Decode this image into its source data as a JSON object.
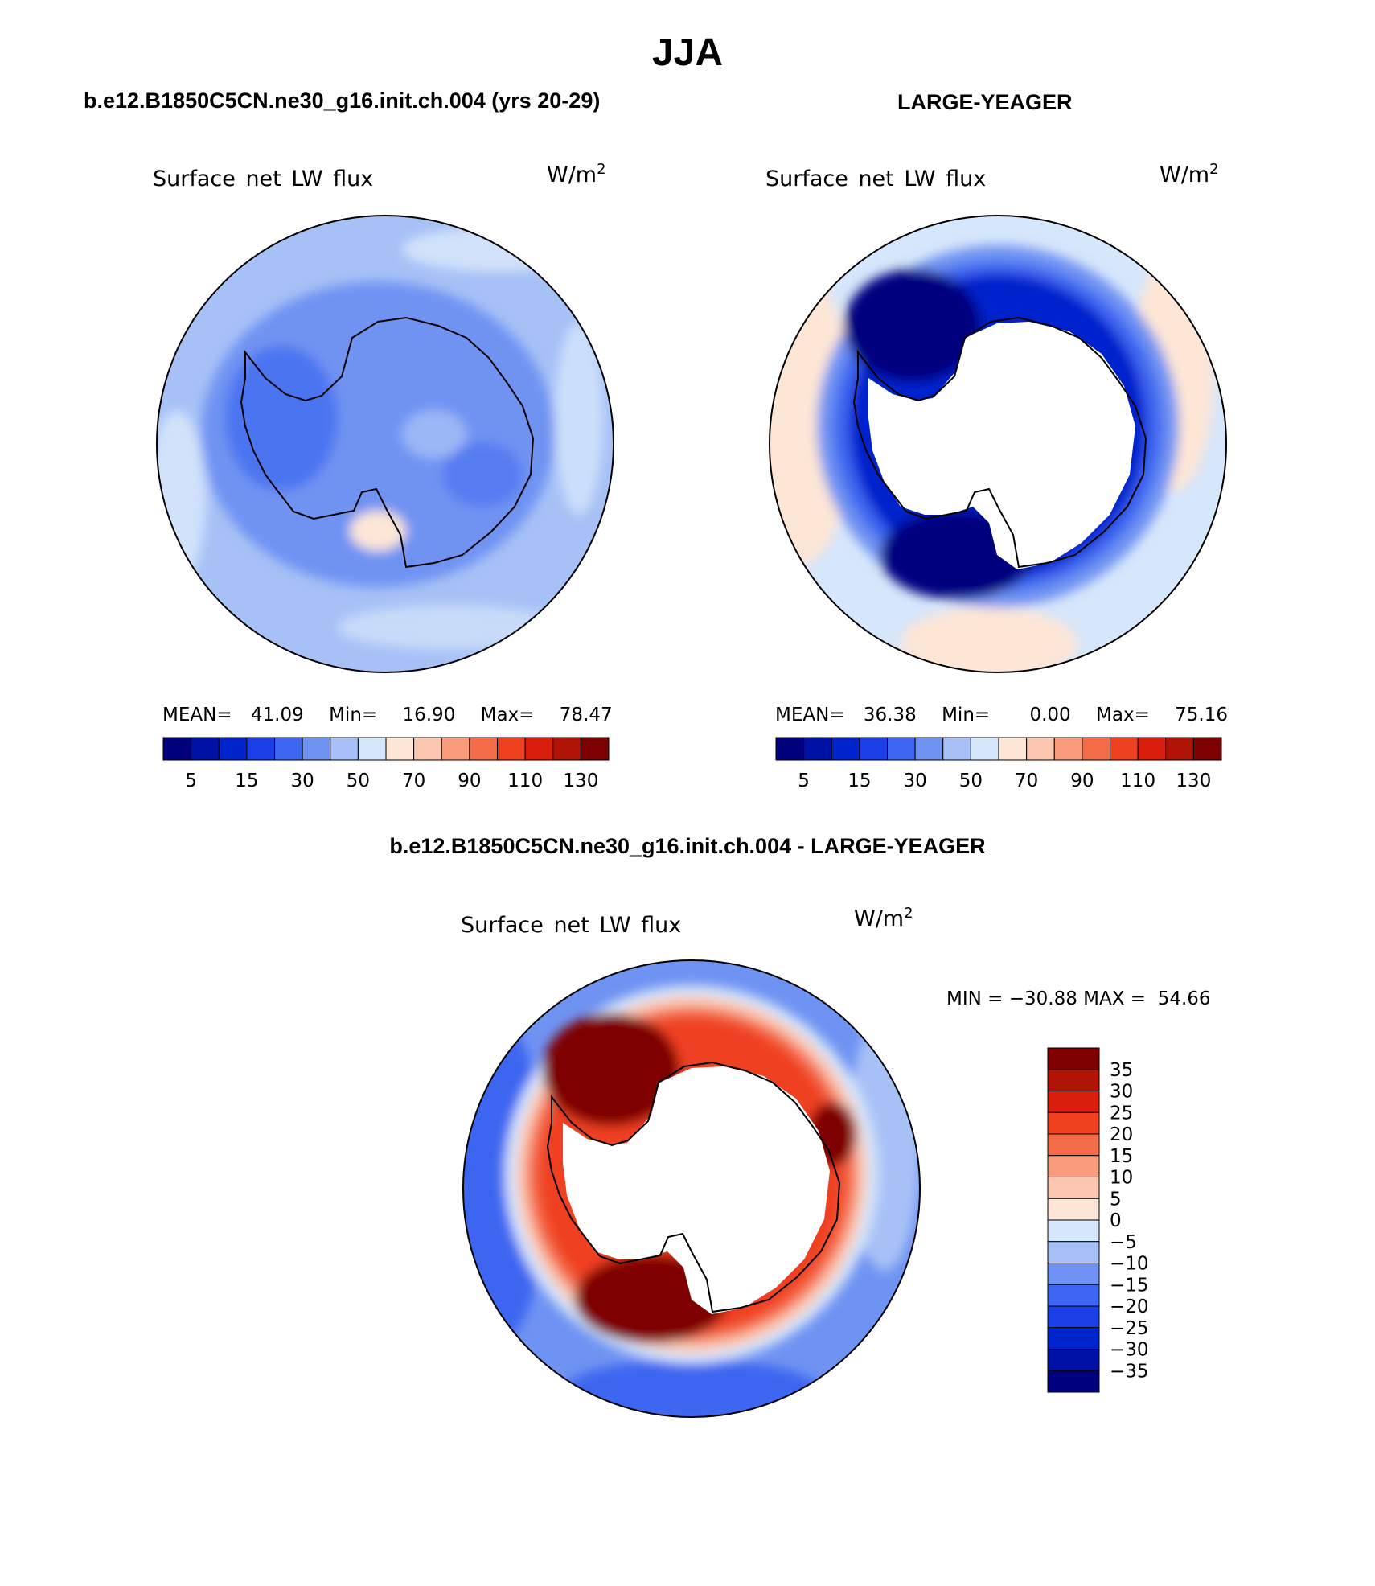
{
  "page_title": "JJA",
  "panels": [
    {
      "id": "model",
      "header": "b.e12.B1850C5CN.ne30_g16.init.ch.004 (yrs 20-29)",
      "variable": "Surface net LW flux",
      "units_base": "W/m",
      "units_exp": "2",
      "stats": {
        "mean_label": "MEAN=",
        "mean": "41.09",
        "min_label": "Min=",
        "min": "16.90",
        "max_label": "Max=",
        "max": "78.47"
      }
    },
    {
      "id": "obs",
      "header": "LARGE-YEAGER",
      "variable": "Surface net LW flux",
      "units_base": "W/m",
      "units_exp": "2",
      "stats": {
        "mean_label": "MEAN=",
        "mean": "36.38",
        "min_label": "Min=",
        "min": "0.00",
        "max_label": "Max=",
        "max": "75.16"
      }
    },
    {
      "id": "diff",
      "header": "b.e12.B1850C5CN.ne30_g16.init.ch.004 - LARGE-YEAGER",
      "variable": "Surface net LW flux",
      "units_base": "W/m",
      "units_exp": "2",
      "minmax": "MIN = −30.88 MAX =  54.66"
    }
  ],
  "colors": {
    "abs_scale": [
      "#00007f",
      "#0012a6",
      "#0024cc",
      "#1a3fe6",
      "#3d66f0",
      "#6f93f2",
      "#a7c1f6",
      "#d6e6fb",
      "#fde6d6",
      "#fbc7b0",
      "#f89c7c",
      "#f46b48",
      "#ef4120",
      "#d91e0d",
      "#b01407",
      "#7f0000"
    ],
    "diff_scale": [
      "#00007f",
      "#0012a6",
      "#0024cc",
      "#1a3fe6",
      "#3d66f0",
      "#6f93f2",
      "#a7c1f6",
      "#d6e6fb",
      "#fde6d6",
      "#fbc7b0",
      "#f89c7c",
      "#f46b48",
      "#ef4120",
      "#d91e0d",
      "#b01407",
      "#7f0000"
    ]
  },
  "chart_data": [
    {
      "type": "heatmap",
      "projection": "south-polar-stereographic",
      "title": "Surface net LW flux",
      "units": "W/m^2",
      "stats": {
        "mean": 41.09,
        "min": 16.9,
        "max": 78.47
      },
      "colorbar": {
        "orientation": "horizontal",
        "levels": [
          0,
          5,
          10,
          15,
          20,
          30,
          40,
          50,
          60,
          70,
          80,
          90,
          100,
          110,
          120,
          130
        ],
        "tick_labels": [
          "5",
          "15",
          "30",
          "50",
          "70",
          "90",
          "110",
          "130"
        ]
      }
    },
    {
      "type": "heatmap",
      "projection": "south-polar-stereographic",
      "title": "Surface net LW flux",
      "units": "W/m^2",
      "stats": {
        "mean": 36.38,
        "min": 0.0,
        "max": 75.16
      },
      "colorbar": {
        "orientation": "horizontal",
        "levels": [
          0,
          5,
          10,
          15,
          20,
          30,
          40,
          50,
          60,
          70,
          80,
          90,
          100,
          110,
          120,
          130
        ],
        "tick_labels": [
          "5",
          "15",
          "30",
          "50",
          "70",
          "90",
          "110",
          "130"
        ]
      }
    },
    {
      "type": "heatmap",
      "projection": "south-polar-stereographic",
      "title": "Surface net LW flux",
      "units": "W/m^2",
      "stats": {
        "min": -30.88,
        "max": 54.66
      },
      "colorbar": {
        "orientation": "vertical",
        "levels": [
          -35,
          -30,
          -25,
          -20,
          -15,
          -10,
          -5,
          0,
          5,
          10,
          15,
          20,
          25,
          30,
          35
        ],
        "tick_labels": [
          "35",
          "30",
          "25",
          "20",
          "15",
          "10",
          "5",
          "0",
          "−5",
          "−10",
          "−15",
          "−20",
          "−25",
          "−30",
          "−35"
        ]
      }
    }
  ]
}
